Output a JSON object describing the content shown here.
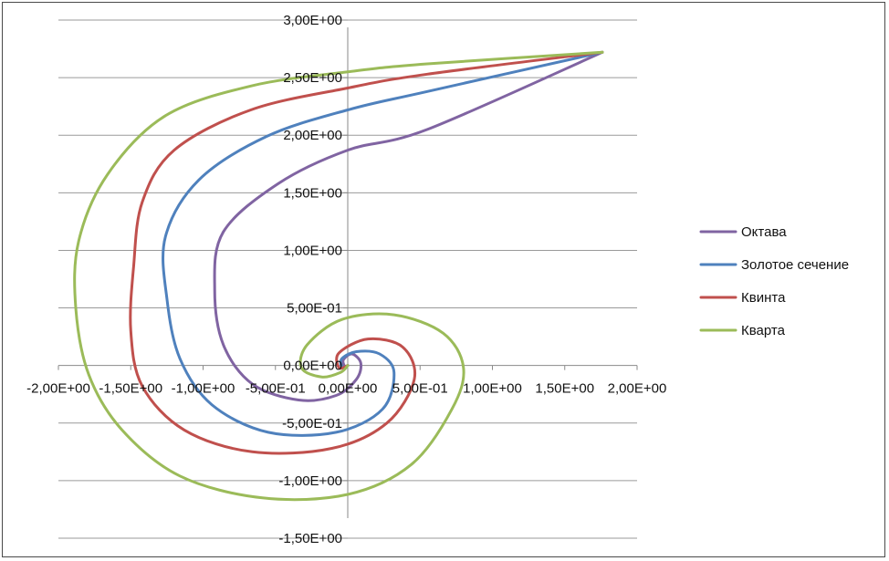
{
  "chart_data": {
    "type": "line",
    "title": "",
    "xlabel": "",
    "ylabel": "",
    "xlim": [
      -2.0,
      2.0
    ],
    "ylim": [
      -1.5,
      3.0
    ],
    "x_ticks": [
      -2.0,
      -1.5,
      -1.0,
      -0.5,
      0.0,
      0.5,
      1.0,
      1.5,
      2.0
    ],
    "y_ticks": [
      -1.5,
      -1.0,
      -0.5,
      0.0,
      0.5,
      1.0,
      1.5,
      2.0,
      2.5,
      3.0
    ],
    "x_tick_labels": [
      "-2,00E+00",
      "-1,50E+00",
      "-1,00E+00",
      "-5,00E-01",
      "0,00E+00",
      "5,00E-01",
      "1,00E+00",
      "1,50E+00",
      "2,00E+00"
    ],
    "y_tick_labels": [
      "-1,50E+00",
      "-1,00E+00",
      "-5,00E-01",
      "0,00E+00",
      "5,00E-01",
      "1,00E+00",
      "1,50E+00",
      "2,00E+00",
      "2,50E+00",
      "3,00E+00"
    ],
    "grid": "horizontal",
    "legend_position": "right",
    "series": [
      {
        "name": "Октава",
        "color": "#8064a2",
        "points": [
          [
            1.76,
            2.72
          ],
          [
            0.55,
            2.05
          ],
          [
            0.0,
            1.87
          ],
          [
            -0.48,
            1.58
          ],
          [
            -0.86,
            1.16
          ],
          [
            -0.92,
            0.66
          ],
          [
            -0.86,
            0.18
          ],
          [
            -0.66,
            -0.16
          ],
          [
            -0.34,
            -0.3
          ],
          [
            -0.08,
            -0.26
          ],
          [
            0.06,
            -0.12
          ],
          [
            0.09,
            0.02
          ],
          [
            0.03,
            0.1
          ],
          [
            -0.03,
            0.05
          ],
          [
            -0.02,
            -0.01
          ],
          [
            0.0,
            0.0
          ]
        ]
      },
      {
        "name": "Золотое сечение",
        "color": "#4f81bd",
        "points": [
          [
            1.76,
            2.72
          ],
          [
            0.55,
            2.38
          ],
          [
            0.0,
            2.22
          ],
          [
            -0.56,
            1.99
          ],
          [
            -1.03,
            1.61
          ],
          [
            -1.26,
            1.12
          ],
          [
            -1.25,
            0.58
          ],
          [
            -1.16,
            0.06
          ],
          [
            -0.94,
            -0.34
          ],
          [
            -0.55,
            -0.58
          ],
          [
            -0.08,
            -0.58
          ],
          [
            0.24,
            -0.38
          ],
          [
            0.32,
            -0.06
          ],
          [
            0.22,
            0.1
          ],
          [
            0.06,
            0.12
          ],
          [
            -0.04,
            0.06
          ],
          [
            -0.04,
            -0.01
          ],
          [
            0.0,
            0.0
          ]
        ]
      },
      {
        "name": "Квинта",
        "color": "#c0504d",
        "points": [
          [
            1.76,
            2.72
          ],
          [
            0.55,
            2.53
          ],
          [
            0.0,
            2.41
          ],
          [
            -0.67,
            2.22
          ],
          [
            -1.2,
            1.87
          ],
          [
            -1.42,
            1.42
          ],
          [
            -1.48,
            0.86
          ],
          [
            -1.5,
            0.3
          ],
          [
            -1.42,
            -0.18
          ],
          [
            -1.13,
            -0.56
          ],
          [
            -0.66,
            -0.75
          ],
          [
            -0.11,
            -0.72
          ],
          [
            0.27,
            -0.5
          ],
          [
            0.46,
            -0.12
          ],
          [
            0.38,
            0.16
          ],
          [
            0.14,
            0.23
          ],
          [
            -0.06,
            0.11
          ],
          [
            -0.06,
            -0.02
          ],
          [
            0.0,
            0.0
          ]
        ]
      },
      {
        "name": "Кварта",
        "color": "#9bbb59",
        "points": [
          [
            1.76,
            2.72
          ],
          [
            0.55,
            2.62
          ],
          [
            0.0,
            2.55
          ],
          [
            -0.66,
            2.43
          ],
          [
            -1.26,
            2.17
          ],
          [
            -1.66,
            1.66
          ],
          [
            -1.86,
            1.08
          ],
          [
            -1.88,
            0.5
          ],
          [
            -1.79,
            -0.08
          ],
          [
            -1.56,
            -0.56
          ],
          [
            -1.16,
            -0.96
          ],
          [
            -0.59,
            -1.15
          ],
          [
            0.0,
            -1.12
          ],
          [
            0.44,
            -0.86
          ],
          [
            0.72,
            -0.38
          ],
          [
            0.8,
            -0.02
          ],
          [
            0.66,
            0.28
          ],
          [
            0.32,
            0.44
          ],
          [
            -0.04,
            0.4
          ],
          [
            -0.28,
            0.18
          ],
          [
            -0.32,
            -0.02
          ],
          [
            -0.18,
            -0.1
          ],
          [
            -0.05,
            -0.06
          ],
          [
            0.0,
            0.0
          ]
        ]
      }
    ]
  }
}
